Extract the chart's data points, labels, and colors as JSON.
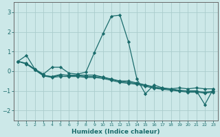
{
  "xlabel": "Humidex (Indice chaleur)",
  "ylabel": "",
  "xlim": [
    -0.5,
    23.5
  ],
  "ylim": [
    -2.5,
    3.5
  ],
  "yticks": [
    -2,
    -1,
    0,
    1,
    2,
    3
  ],
  "xticks": [
    0,
    1,
    2,
    3,
    4,
    5,
    6,
    7,
    8,
    9,
    10,
    11,
    12,
    13,
    14,
    15,
    16,
    17,
    18,
    19,
    20,
    21,
    22,
    23
  ],
  "background_color": "#cce8e8",
  "grid_color": "#aacccc",
  "line_color": "#1a6b6b",
  "lines": [
    [
      0.5,
      0.8,
      0.1,
      -0.15,
      0.2,
      0.2,
      -0.1,
      -0.15,
      -0.05,
      0.95,
      1.9,
      2.8,
      2.85,
      1.5,
      -0.4,
      -1.15,
      -0.7,
      -0.85,
      -0.9,
      -0.85,
      -0.9,
      -0.85,
      -0.9,
      -0.9
    ],
    [
      0.5,
      0.4,
      0.1,
      -0.2,
      -0.3,
      -0.2,
      -0.2,
      -0.2,
      -0.2,
      -0.2,
      -0.3,
      -0.4,
      -0.5,
      -0.5,
      -0.6,
      -0.7,
      -0.8,
      -0.9,
      -0.9,
      -1.0,
      -1.0,
      -1.0,
      -1.7,
      -0.9
    ],
    [
      0.5,
      0.38,
      0.08,
      -0.22,
      -0.27,
      -0.17,
      -0.22,
      -0.22,
      -0.27,
      -0.27,
      -0.32,
      -0.42,
      -0.52,
      -0.57,
      -0.62,
      -0.72,
      -0.82,
      -0.87,
      -0.92,
      -0.97,
      -1.02,
      -1.02,
      -1.07,
      -1.02
    ],
    [
      0.5,
      0.36,
      0.06,
      -0.24,
      -0.32,
      -0.27,
      -0.27,
      -0.27,
      -0.32,
      -0.32,
      -0.37,
      -0.47,
      -0.57,
      -0.62,
      -0.67,
      -0.77,
      -0.87,
      -0.92,
      -0.97,
      -1.02,
      -1.07,
      -1.07,
      -1.12,
      -1.07
    ]
  ]
}
